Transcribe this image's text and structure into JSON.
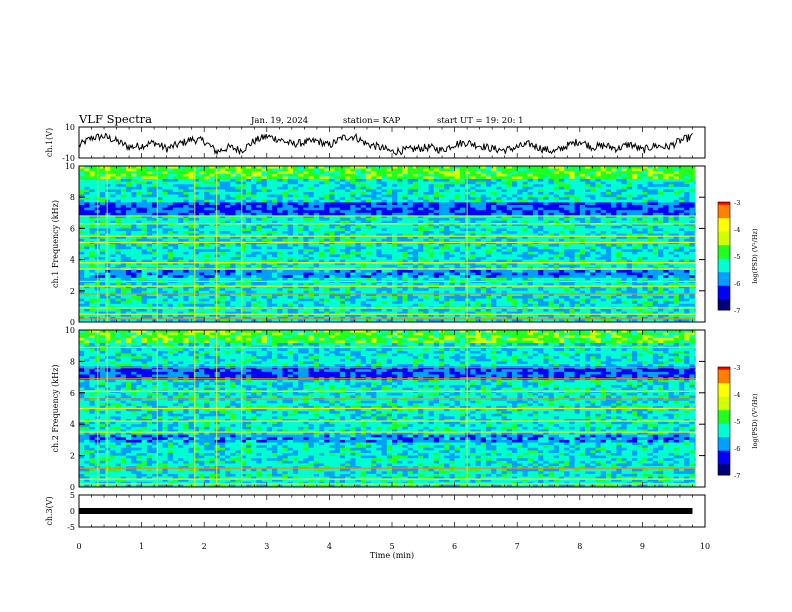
{
  "header": {
    "title": "VLF Spectra",
    "date": "Jan. 19, 2024",
    "station": "station= KAP",
    "start": "start  UT =   19: 20: 1"
  },
  "colors": {
    "colormap": [
      "#000078",
      "#0000ff",
      "#00a0ff",
      "#00ffd0",
      "#20ff20",
      "#d0ff00",
      "#ffff00",
      "#ff8000",
      "#ff0000",
      "#ffffff"
    ],
    "trace": "#000000",
    "frame": "#000000"
  },
  "chart_data": [
    {
      "type": "line",
      "name": "ch1-waveform",
      "ylabel": "ch.1(V)",
      "ylim": [
        -10,
        10
      ],
      "yticks": [
        "10",
        "-10"
      ],
      "xlim": [
        0,
        10
      ],
      "x": [
        0,
        0.2,
        0.4,
        0.6,
        0.8,
        1.0,
        1.2,
        1.4,
        1.6,
        1.8,
        2.0,
        2.2,
        2.4,
        2.6,
        2.8,
        3.0,
        3.2,
        3.4,
        3.6,
        3.8,
        4.0,
        4.2,
        4.4,
        4.6,
        4.8,
        5.0,
        5.2,
        5.4,
        5.6,
        5.8,
        6.0,
        6.2,
        6.4,
        6.6,
        6.8,
        7.0,
        7.2,
        7.4,
        7.6,
        7.8,
        8.0,
        8.2,
        8.4,
        8.6,
        8.8,
        9.0,
        9.2,
        9.4,
        9.6,
        9.8
      ],
      "y": [
        -2,
        3,
        4,
        1,
        -3,
        -2,
        0,
        -4,
        -1,
        2,
        1,
        -6,
        -3,
        -5,
        1,
        4,
        2,
        -1,
        0,
        1,
        -2,
        3,
        4,
        -1,
        -3,
        -6,
        -5,
        -4,
        -3,
        -5,
        -1,
        0,
        -2,
        -4,
        -5,
        -3,
        -1,
        -4,
        -6,
        -2,
        1,
        -3,
        -2,
        -4,
        -1,
        -5,
        -2,
        -3,
        1,
        4
      ]
    },
    {
      "type": "heatmap",
      "name": "ch1-spectrogram",
      "ylabel": "ch.1 Frequency (kHz)",
      "ylim": [
        0,
        10
      ],
      "yticks": [
        "0",
        "2",
        "4",
        "6",
        "8",
        "10"
      ],
      "xlim": [
        0,
        10
      ],
      "zlabel": "log(PSD) (V²/Hz)",
      "zlim": [
        -7,
        -3
      ],
      "zticks": [
        "-3",
        "-4",
        "-5",
        "-6",
        "-7"
      ],
      "band_freqs_khz": [
        0.2,
        0.5,
        0.9,
        1.8,
        2.3,
        2.6,
        3.4,
        3.8,
        5.1,
        5.5,
        6.3,
        6.8
      ],
      "bright_times_min": [
        0.3,
        0.45,
        1.25,
        1.85,
        2.2,
        2.6,
        6.2
      ]
    },
    {
      "type": "heatmap",
      "name": "ch2-spectrogram",
      "ylabel": "ch.2 Frequency (kHz)",
      "ylim": [
        0,
        10
      ],
      "yticks": [
        "0",
        "2",
        "4",
        "6",
        "8",
        "10"
      ],
      "xlim": [
        0,
        10
      ],
      "zlabel": "log(PSD) (V²/Hz)",
      "zlim": [
        -7,
        -3
      ],
      "zticks": [
        "-3",
        "-4",
        "-5",
        "-6",
        "-7"
      ],
      "band_freqs_khz": [
        0.2,
        0.5,
        1.2,
        3.5,
        4.2,
        5.0,
        5.6,
        6.1,
        6.9,
        7.6,
        8.9
      ],
      "bright_times_min": [
        0.3,
        0.45,
        1.25,
        1.85,
        2.2,
        2.6,
        6.2
      ]
    },
    {
      "type": "line",
      "name": "ch3-signal",
      "ylabel": "ch.3(V)",
      "ylim": [
        -5,
        5
      ],
      "yticks": [
        "5",
        "0",
        "-5"
      ],
      "xlim": [
        0,
        9.8
      ],
      "x": [
        0,
        9.8
      ],
      "y": [
        0,
        0
      ],
      "xlabel": "Time  (min)",
      "xticks": [
        "0",
        "1",
        "2",
        "3",
        "4",
        "5",
        "6",
        "7",
        "8",
        "9",
        "10"
      ]
    }
  ]
}
